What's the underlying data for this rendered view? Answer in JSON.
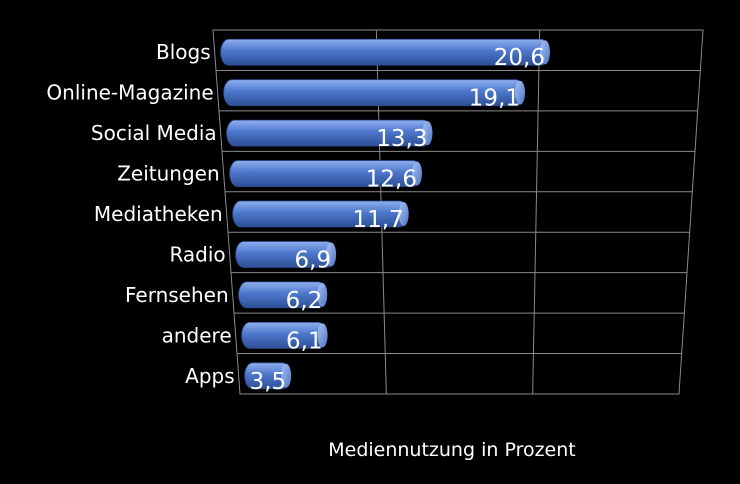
{
  "chart_data": {
    "type": "bar",
    "orientation": "horizontal",
    "categories": [
      "Blogs",
      "Online-Magazine",
      "Social Media",
      "Zeitungen",
      "Mediatheken",
      "Radio",
      "Fernsehen",
      "andere",
      "Apps"
    ],
    "values": [
      20.6,
      19.1,
      13.3,
      12.6,
      11.7,
      6.9,
      6.2,
      6.1,
      3.5
    ],
    "value_labels": [
      "20,6",
      "19,1",
      "13,3",
      "12,6",
      "11,7",
      "6,9",
      "6,2",
      "6,1",
      "3,5"
    ],
    "title": "",
    "xlabel": "Mediennutzung in Prozent",
    "ylabel": "",
    "xlim": [
      0,
      30
    ],
    "grid": true,
    "bar_color": "#4a72c4",
    "background": "#000000"
  }
}
